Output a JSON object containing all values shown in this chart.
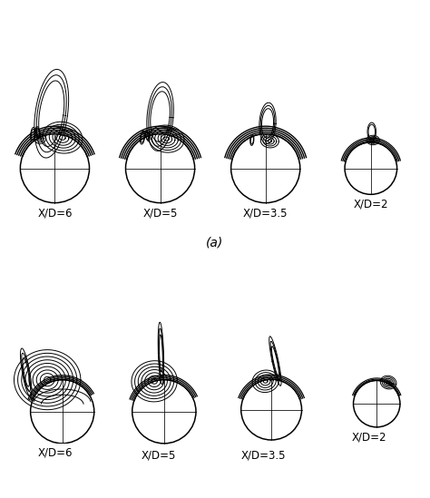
{
  "title_a": "(a)",
  "labels_top": [
    "X/D=6",
    "X/D=5",
    "X/D=3.5",
    "X/D=2"
  ],
  "labels_bottom": [
    "X/D=6",
    "X/D=5",
    "X/D=3.5",
    "X/D=2"
  ],
  "background_color": "#ffffff",
  "line_color": "#000000",
  "figure_width": 4.74,
  "figure_height": 5.49,
  "dpi": 100
}
